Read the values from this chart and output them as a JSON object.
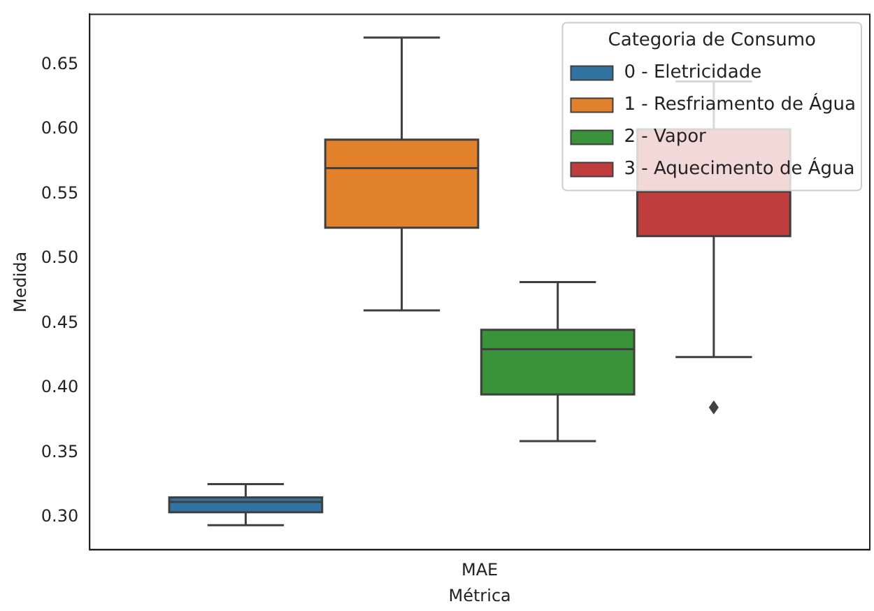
{
  "chart_data": {
    "type": "box",
    "xlabel": "Métrica",
    "ylabel": "Medida",
    "legend_title": "Categoria de Consumo",
    "legend": "top right",
    "grid": false,
    "marker": "diamond",
    "categories": [
      "MAE"
    ],
    "ylim": [
      0.275,
      0.689
    ],
    "yticks": [
      {
        "value": 0.3,
        "label": "0.30"
      },
      0.35,
      {
        "value": 0.4,
        "label": "0.40"
      },
      0.45,
      {
        "value": 0.5,
        "label": "0.50"
      },
      0.55,
      {
        "value": 0.6,
        "label": "0.60"
      },
      0.65
    ],
    "series": [
      {
        "name": "0 - Eletricidade",
        "color": "#3274a1",
        "boxes": [
          {
            "low": 0.294,
            "q1": 0.304,
            "median": 0.312,
            "q3": 0.3155,
            "high": 0.3257
          }
        ]
      },
      {
        "name": "1 - Resfriamento de Água",
        "color": "#e1812c",
        "boxes": [
          {
            "low": 0.46,
            "q1": 0.524,
            "median": 0.57,
            "q3": 0.592,
            "high": 0.671
          }
        ]
      },
      {
        "name": "2 - Vapor",
        "color": "#3a923a",
        "boxes": [
          {
            "low": 0.359,
            "q1": 0.395,
            "median": 0.43,
            "q3": 0.445,
            "high": 0.482
          }
        ]
      },
      {
        "name": "3 - Aquecimento de Água",
        "color": "#c03d3e",
        "boxes": [
          {
            "low": 0.424,
            "q1": 0.5175,
            "median": 0.552,
            "q3": 0.6,
            "high": 0.637,
            "outliers": [
              0.385
            ]
          }
        ]
      }
    ]
  }
}
